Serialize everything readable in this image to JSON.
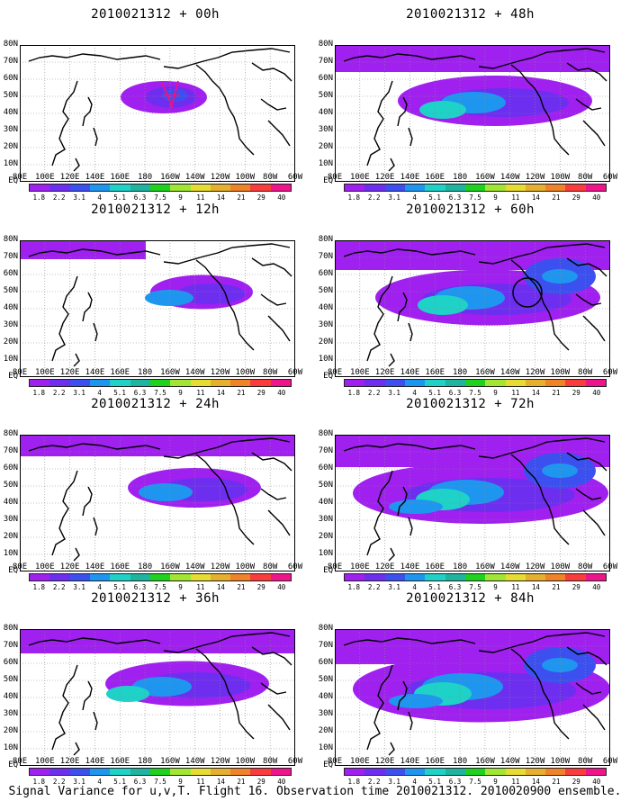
{
  "panels": [
    {
      "title": "2010021312 + 00h",
      "level": 0,
      "marker": "cross"
    },
    {
      "title": "2010021312 + 48h",
      "level": 4,
      "marker": ""
    },
    {
      "title": "2010021312 + 12h",
      "level": 1,
      "marker": ""
    },
    {
      "title": "2010021312 + 60h",
      "level": 5,
      "marker": "circle"
    },
    {
      "title": "2010021312 + 24h",
      "level": 2,
      "marker": ""
    },
    {
      "title": "2010021312 + 72h",
      "level": 6,
      "marker": ""
    },
    {
      "title": "2010021312 + 36h",
      "level": 3,
      "marker": ""
    },
    {
      "title": "2010021312 + 84h",
      "level": 7,
      "marker": ""
    }
  ],
  "axes": {
    "lat_labels": [
      "80N",
      "70N",
      "60N",
      "50N",
      "40N",
      "30N",
      "20N",
      "10N",
      "EQ"
    ],
    "lon_labels": [
      "80E",
      "100E",
      "120E",
      "140E",
      "160E",
      "180",
      "160W",
      "140W",
      "120W",
      "100W",
      "80W",
      "60W"
    ]
  },
  "colorbar": {
    "labels": [
      "1.8",
      "2.2",
      "3.1",
      "4",
      "5.1",
      "6.3",
      "7.5",
      "9",
      "11",
      "14",
      "21",
      "29",
      "40"
    ],
    "colors": [
      "#a020f0",
      "#6e2ef0",
      "#3c50f0",
      "#1e96f0",
      "#1ed2c8",
      "#1eb4a0",
      "#1ed21e",
      "#a0e632",
      "#e6dc32",
      "#e6af2d",
      "#f08228",
      "#fa3c3c",
      "#f0148c"
    ]
  },
  "footer": "Signal Variance for u,v,T. Flight 16. Observation time 2010021312. 2010020900 ensemble."
}
